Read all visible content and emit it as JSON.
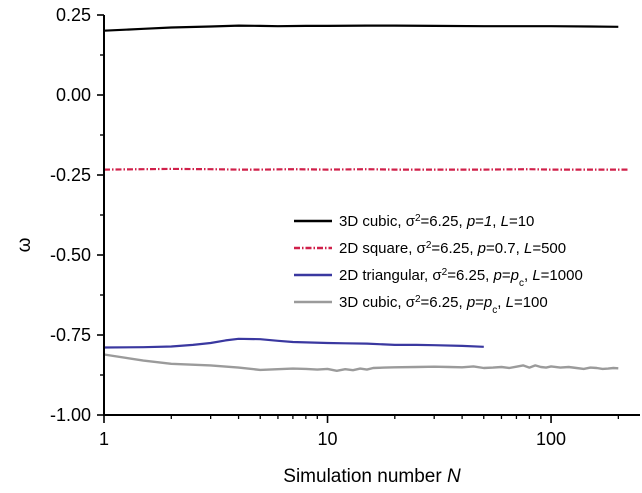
{
  "chart_data": {
    "type": "line",
    "title": "",
    "xlabel": "Simulation number",
    "xlabel_var": "N",
    "ylabel": "ω",
    "xscale": "log",
    "xlim": [
      1,
      250
    ],
    "ylim": [
      -1.0,
      0.25
    ],
    "x_ticks": [
      1,
      10,
      100
    ],
    "x_tick_labels": [
      "1",
      "10",
      "100"
    ],
    "y_ticks": [
      -1.0,
      -0.75,
      -0.5,
      -0.25,
      0.0,
      0.25
    ],
    "y_tick_labels": [
      "-1.00",
      "-0.75",
      "-0.50",
      "-0.25",
      "0.00",
      "0.25"
    ],
    "legend_position": "center-right",
    "series": [
      {
        "name": "3D cubic, σ²=6.25, p=1, L=10",
        "legend": [
          {
            "t": "3D cubic, σ"
          },
          {
            "t": "2",
            "sup": true
          },
          {
            "t": "=6.25, "
          },
          {
            "t": "p",
            "it": true
          },
          {
            "t": "="
          },
          {
            "t": "1",
            "it": true
          },
          {
            "t": ", "
          },
          {
            "t": "L",
            "it": true
          },
          {
            "t": "=10"
          }
        ],
        "color": "#000000",
        "style": "solid",
        "x": [
          1,
          1.5,
          2,
          3,
          4,
          5,
          6,
          8,
          10,
          15,
          20,
          30,
          50,
          80,
          100,
          150,
          200
        ],
        "y": [
          0.201,
          0.207,
          0.211,
          0.214,
          0.217,
          0.216,
          0.215,
          0.216,
          0.216,
          0.217,
          0.217,
          0.216,
          0.215,
          0.215,
          0.215,
          0.214,
          0.213
        ]
      },
      {
        "name": "2D square, σ²=6.25, p=0.7, L=500",
        "legend": [
          {
            "t": "2D square, σ"
          },
          {
            "t": "2",
            "sup": true
          },
          {
            "t": "=6.25, "
          },
          {
            "t": "p",
            "it": true
          },
          {
            "t": "=0.7, "
          },
          {
            "t": "L",
            "it": true
          },
          {
            "t": "=500"
          }
        ],
        "color": "#d0204a",
        "style": "dashdot",
        "x": [
          1,
          1.5,
          2,
          3,
          4,
          5,
          7,
          10,
          15,
          20,
          30,
          50,
          80,
          100,
          150,
          220
        ],
        "y": [
          -0.233,
          -0.232,
          -0.231,
          -0.232,
          -0.233,
          -0.233,
          -0.232,
          -0.233,
          -0.232,
          -0.233,
          -0.233,
          -0.233,
          -0.232,
          -0.233,
          -0.233,
          -0.233
        ]
      },
      {
        "name": "2D triangular, σ²=6.25, p=pc, L=1000",
        "legend": [
          {
            "t": "2D triangular, σ"
          },
          {
            "t": "2",
            "sup": true
          },
          {
            "t": "=6.25, "
          },
          {
            "t": "p",
            "it": true
          },
          {
            "t": "="
          },
          {
            "t": "p",
            "it": true
          },
          {
            "t": "c",
            "sub": true
          },
          {
            "t": ", "
          },
          {
            "t": "L",
            "it": true
          },
          {
            "t": "=1000"
          }
        ],
        "color": "#3a38a0",
        "style": "solid",
        "x": [
          1,
          1.5,
          2,
          2.5,
          3,
          3.5,
          4,
          5,
          6,
          7,
          8,
          10,
          12,
          15,
          20,
          25,
          30,
          40,
          50
        ],
        "y": [
          -0.789,
          -0.788,
          -0.786,
          -0.781,
          -0.775,
          -0.767,
          -0.762,
          -0.763,
          -0.768,
          -0.772,
          -0.773,
          -0.775,
          -0.776,
          -0.777,
          -0.781,
          -0.781,
          -0.782,
          -0.784,
          -0.787
        ]
      },
      {
        "name": "3D cubic, σ²=6.25, p=pc, L=100",
        "legend": [
          {
            "t": "3D cubic, σ"
          },
          {
            "t": "2",
            "sup": true
          },
          {
            "t": "=6.25,  "
          },
          {
            "t": "p",
            "it": true
          },
          {
            "t": "="
          },
          {
            "t": "p",
            "it": true
          },
          {
            "t": "c",
            "sub": true
          },
          {
            "t": ", "
          },
          {
            "t": "L",
            "it": true
          },
          {
            "t": "=100"
          }
        ],
        "color": "#9b9b9b",
        "style": "solid",
        "x": [
          1,
          1.5,
          2,
          3,
          4,
          5,
          6,
          7,
          8,
          9,
          10,
          11,
          12,
          13,
          14,
          15,
          16,
          18,
          20,
          25,
          30,
          35,
          40,
          45,
          50,
          55,
          60,
          65,
          70,
          75,
          80,
          85,
          90,
          95,
          100,
          110,
          120,
          130,
          140,
          150,
          160,
          170,
          180,
          190,
          200
        ],
        "y": [
          -0.811,
          -0.83,
          -0.84,
          -0.845,
          -0.852,
          -0.859,
          -0.857,
          -0.855,
          -0.856,
          -0.858,
          -0.856,
          -0.862,
          -0.857,
          -0.86,
          -0.855,
          -0.858,
          -0.853,
          -0.852,
          -0.851,
          -0.85,
          -0.849,
          -0.85,
          -0.851,
          -0.848,
          -0.853,
          -0.852,
          -0.85,
          -0.853,
          -0.849,
          -0.845,
          -0.852,
          -0.845,
          -0.85,
          -0.852,
          -0.848,
          -0.852,
          -0.85,
          -0.853,
          -0.856,
          -0.852,
          -0.853,
          -0.856,
          -0.855,
          -0.853,
          -0.854
        ]
      }
    ]
  }
}
